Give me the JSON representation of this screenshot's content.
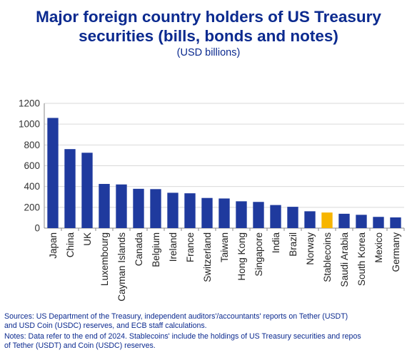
{
  "title_line1": "Major foreign country holders of US Treasury",
  "title_line2": "securities (bills, bonds and notes)",
  "subtitle": "(USD billions)",
  "footer": {
    "sources_line1": "Sources: US Department of the Treasury, independent auditors'/accountants' reports on Tether (USDT)",
    "sources_line2": "and USD Coin (USDC) reserves, and ECB staff calculations.",
    "notes_line1": "Notes: Data refer to the end of 2024. Stablecoins' include the holdings of US Treasury securities and repos",
    "notes_line2": "of Tether (USDT) and Coin (USDC) reserves."
  },
  "colors": {
    "bar": "#1f3a9e",
    "highlight": "#f7b500",
    "title": "#0b2a8f",
    "grid": "#d9d9d9"
  },
  "chart_data": {
    "type": "bar",
    "categories": [
      "Japan",
      "China",
      "UK",
      "Luxembourg",
      "Cayman Islands",
      "Canada",
      "Belgium",
      "Ireland",
      "France",
      "Switzerland",
      "Taiwan",
      "Hong Kong",
      "Singapore",
      "India",
      "Brazil",
      "Norway",
      "Stablecoins",
      "Saudi Arabia",
      "South Korea",
      "Mexico",
      "Germany"
    ],
    "values": [
      1060,
      760,
      725,
      425,
      420,
      378,
      375,
      340,
      335,
      290,
      285,
      258,
      252,
      222,
      205,
      162,
      150,
      138,
      128,
      108,
      103
    ],
    "highlight": "Stablecoins",
    "ylim": [
      0,
      1200
    ],
    "yticks": [
      "0",
      "200",
      "400",
      "600",
      "800",
      "1000",
      "1200"
    ],
    "grid": true,
    "title": "Major foreign country holders of US Treasury securities (bills, bonds and notes)",
    "ylabel": "(USD billions)",
    "xlabel": ""
  }
}
